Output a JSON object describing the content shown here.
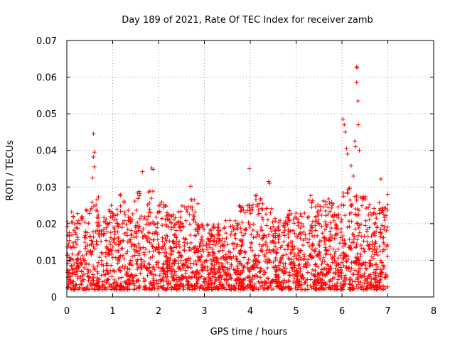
{
  "chart_data": {
    "type": "scatter",
    "title": "Day 189 of 2021, Rate Of TEC Index for receiver zamb",
    "xlabel": "GPS time / hours",
    "ylabel": "ROTI / TECUs",
    "xlim": [
      0,
      8
    ],
    "ylim": [
      0,
      0.07
    ],
    "xticks": [
      "0",
      "1",
      "2",
      "3",
      "4",
      "5",
      "6",
      "7",
      "8"
    ],
    "yticks": [
      "0",
      "0.01",
      "0.02",
      "0.03",
      "0.04",
      "0.05",
      "0.06",
      "0.07"
    ],
    "grid": true,
    "marker": "+",
    "color": "#ff0000",
    "series": [
      {
        "name": "ROTI",
        "x_range": [
          0.0,
          7.0
        ],
        "baseline_min": 0.003,
        "typical_max": 0.024,
        "highlights": [
          {
            "x": 0.58,
            "y": 0.0445
          },
          {
            "x": 0.6,
            "y": 0.0395
          },
          {
            "x": 0.58,
            "y": 0.0382
          },
          {
            "x": 0.6,
            "y": 0.0355
          },
          {
            "x": 0.56,
            "y": 0.0325
          },
          {
            "x": 1.65,
            "y": 0.0342
          },
          {
            "x": 1.85,
            "y": 0.0352
          },
          {
            "x": 1.88,
            "y": 0.0348
          },
          {
            "x": 2.7,
            "y": 0.0302
          },
          {
            "x": 3.98,
            "y": 0.035
          },
          {
            "x": 4.4,
            "y": 0.0315
          },
          {
            "x": 4.42,
            "y": 0.031
          },
          {
            "x": 6.02,
            "y": 0.0485
          },
          {
            "x": 6.05,
            "y": 0.047
          },
          {
            "x": 6.07,
            "y": 0.045
          },
          {
            "x": 6.1,
            "y": 0.0405
          },
          {
            "x": 6.12,
            "y": 0.039
          },
          {
            "x": 6.2,
            "y": 0.0358
          },
          {
            "x": 6.28,
            "y": 0.0425
          },
          {
            "x": 6.3,
            "y": 0.041
          },
          {
            "x": 6.32,
            "y": 0.0628
          },
          {
            "x": 6.33,
            "y": 0.0625
          },
          {
            "x": 6.32,
            "y": 0.0585
          },
          {
            "x": 6.35,
            "y": 0.0535
          },
          {
            "x": 6.36,
            "y": 0.047
          },
          {
            "x": 6.38,
            "y": 0.04
          },
          {
            "x": 6.25,
            "y": 0.033
          },
          {
            "x": 6.85,
            "y": 0.0322
          },
          {
            "x": 7.0,
            "y": 0.028
          },
          {
            "x": 7.0,
            "y": 0.0252
          },
          {
            "x": 6.05,
            "y": 0.0035
          }
        ],
        "clusters": [
          {
            "x": 0.05,
            "ymax": 0.024
          },
          {
            "x": 0.25,
            "ymax": 0.023
          },
          {
            "x": 0.4,
            "ymax": 0.024
          },
          {
            "x": 0.6,
            "ymax": 0.028
          },
          {
            "x": 0.8,
            "ymax": 0.022
          },
          {
            "x": 1.0,
            "ymax": 0.025
          },
          {
            "x": 1.15,
            "ymax": 0.028
          },
          {
            "x": 1.35,
            "ymax": 0.024
          },
          {
            "x": 1.6,
            "ymax": 0.029
          },
          {
            "x": 1.8,
            "ymax": 0.029
          },
          {
            "x": 2.05,
            "ymax": 0.026
          },
          {
            "x": 2.3,
            "ymax": 0.024
          },
          {
            "x": 2.5,
            "ymax": 0.026
          },
          {
            "x": 2.75,
            "ymax": 0.027
          },
          {
            "x": 3.0,
            "ymax": 0.02
          },
          {
            "x": 3.3,
            "ymax": 0.02
          },
          {
            "x": 3.6,
            "ymax": 0.021
          },
          {
            "x": 3.9,
            "ymax": 0.025
          },
          {
            "x": 4.15,
            "ymax": 0.028
          },
          {
            "x": 4.4,
            "ymax": 0.025
          },
          {
            "x": 4.65,
            "ymax": 0.022
          },
          {
            "x": 4.9,
            "ymax": 0.024
          },
          {
            "x": 5.15,
            "ymax": 0.023
          },
          {
            "x": 5.4,
            "ymax": 0.028
          },
          {
            "x": 5.65,
            "ymax": 0.027
          },
          {
            "x": 5.9,
            "ymax": 0.026
          },
          {
            "x": 6.15,
            "ymax": 0.03
          },
          {
            "x": 6.45,
            "ymax": 0.028
          },
          {
            "x": 6.7,
            "ymax": 0.026
          },
          {
            "x": 6.95,
            "ymax": 0.025
          }
        ]
      }
    ]
  }
}
